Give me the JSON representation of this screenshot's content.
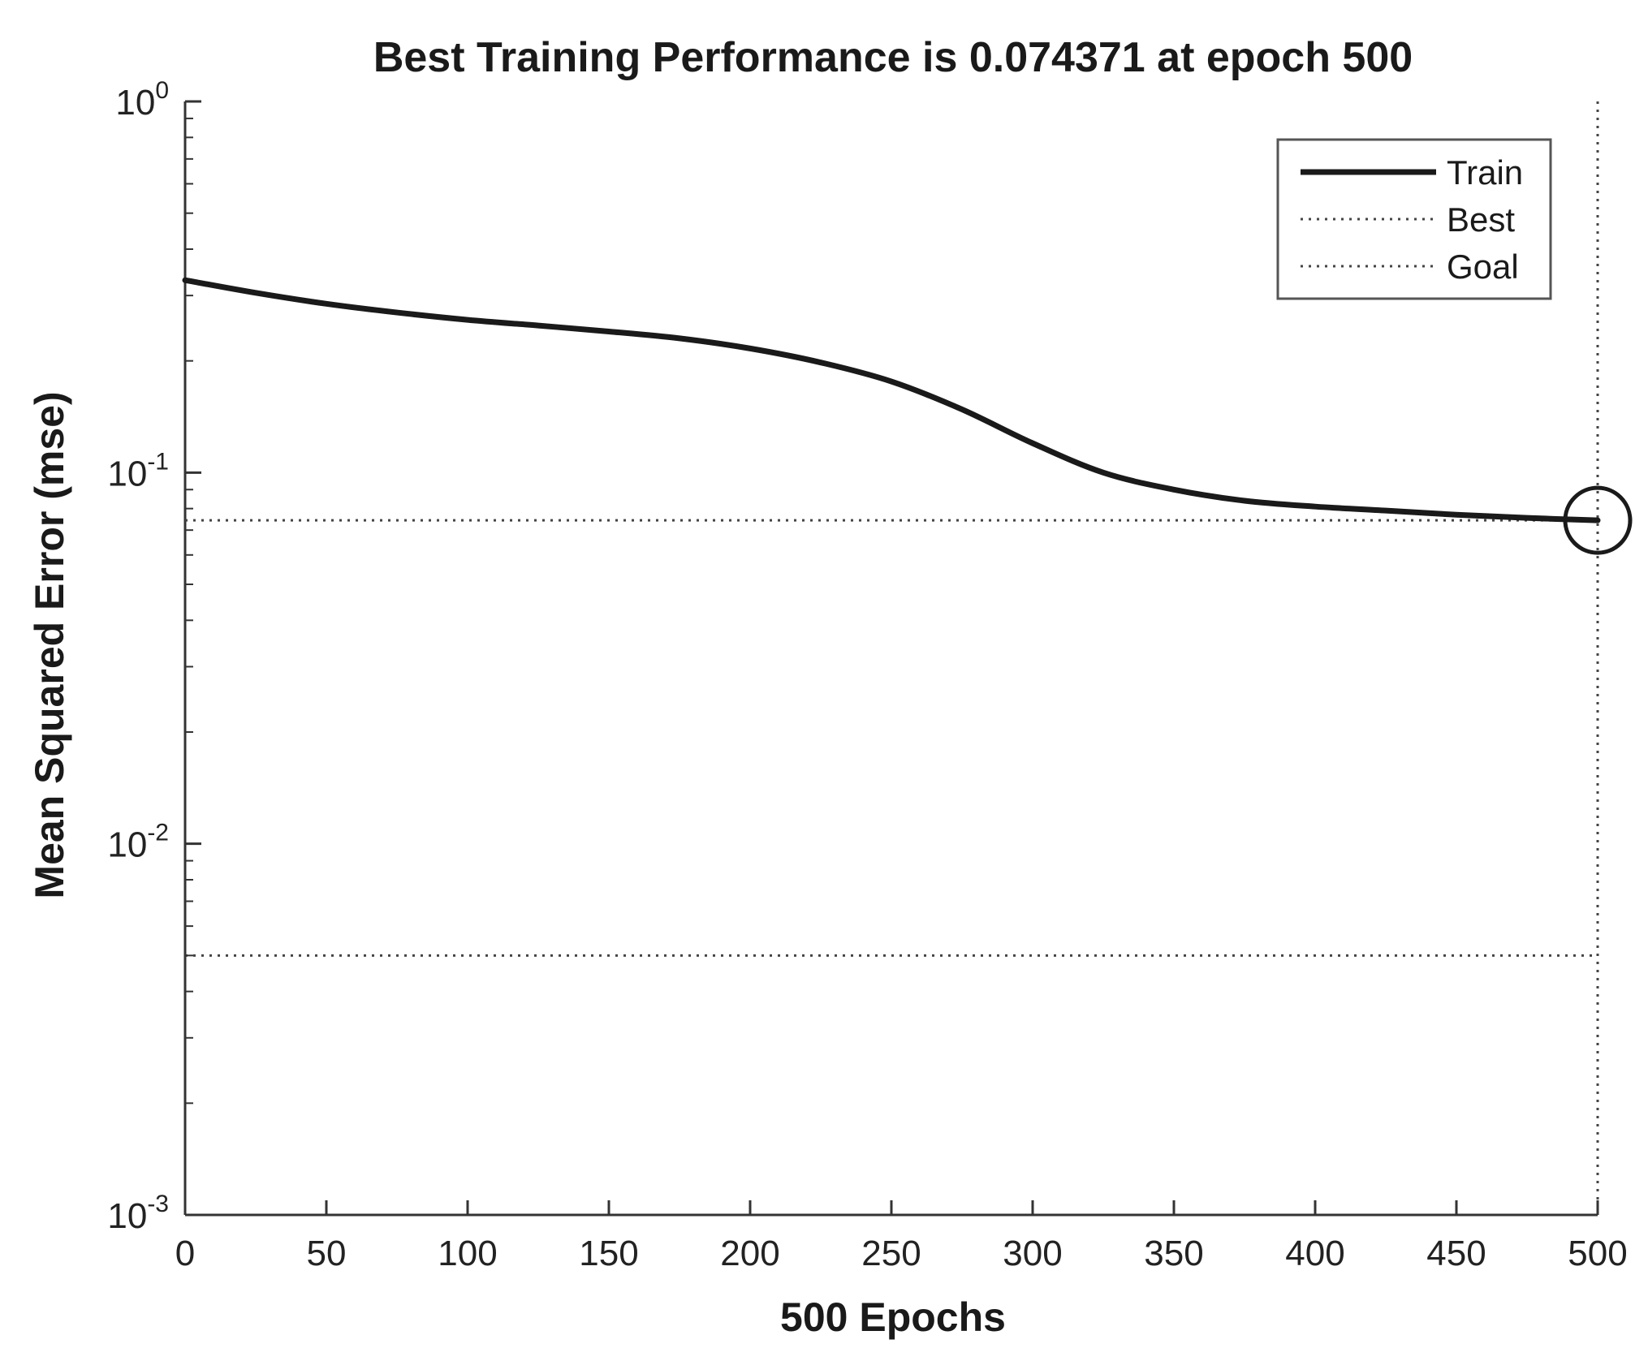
{
  "chart_data": {
    "type": "line",
    "title": "Best Training Performance is 0.074371 at epoch 500",
    "xlabel": "500 Epochs",
    "ylabel": "Mean Squared Error  (mse)",
    "xlim": [
      0,
      500
    ],
    "ylim": [
      0.001,
      1
    ],
    "yscale": "log",
    "x_ticks": [
      0,
      50,
      100,
      150,
      200,
      250,
      300,
      350,
      400,
      450,
      500
    ],
    "y_ticks": [
      {
        "value": 0.001,
        "base": "10",
        "exp": "-3"
      },
      {
        "value": 0.01,
        "base": "10",
        "exp": "-2"
      },
      {
        "value": 0.1,
        "base": "10",
        "exp": "-1"
      },
      {
        "value": 1,
        "base": "10",
        "exp": "0"
      }
    ],
    "grid": false,
    "legend_position": "top-right",
    "series": [
      {
        "name": "Train",
        "style": "solid",
        "color": "#1a1a1a",
        "x": [
          0,
          25,
          50,
          75,
          100,
          125,
          150,
          175,
          200,
          225,
          250,
          275,
          300,
          325,
          350,
          375,
          400,
          425,
          450,
          475,
          500
        ],
        "y": [
          0.33,
          0.305,
          0.285,
          0.27,
          0.258,
          0.249,
          0.24,
          0.23,
          0.216,
          0.198,
          0.176,
          0.148,
          0.12,
          0.1,
          0.09,
          0.084,
          0.081,
          0.079,
          0.077,
          0.0755,
          0.074371
        ]
      }
    ],
    "reference_lines": [
      {
        "name": "Best",
        "style": "dotted",
        "horizontal_y": 0.074371,
        "vertical_x": 500
      },
      {
        "name": "Goal",
        "style": "dotted",
        "horizontal_y": 0.005
      }
    ],
    "best_marker": {
      "x": 500,
      "y": 0.074371,
      "shape": "circle"
    }
  }
}
